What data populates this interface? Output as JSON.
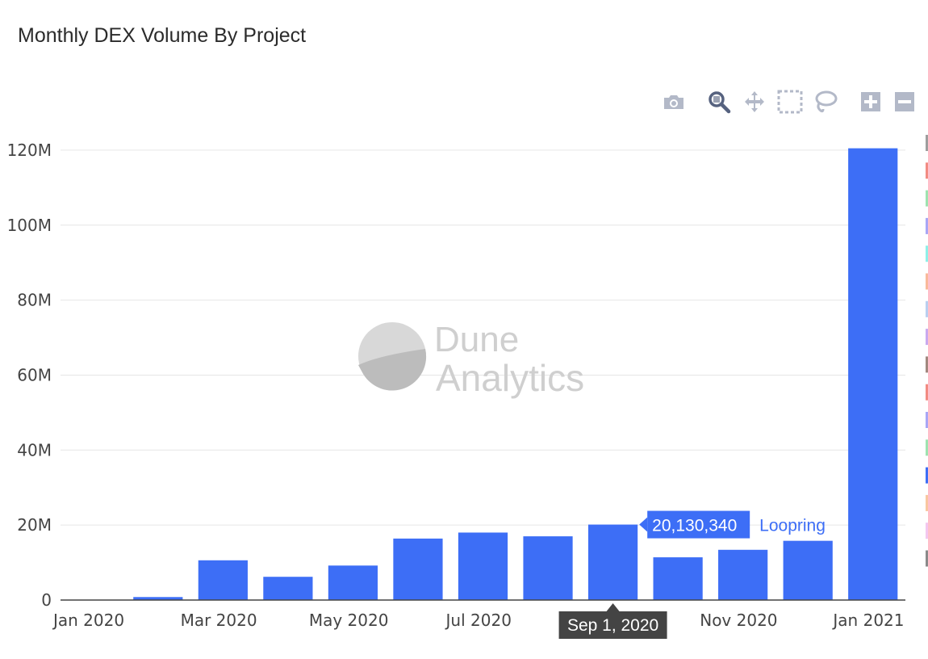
{
  "title": "Monthly DEX Volume By Project",
  "toolbar": {
    "buttons": [
      {
        "name": "camera-icon",
        "label": "Download plot as a png"
      },
      {
        "name": "zoom-icon",
        "label": "Zoom"
      },
      {
        "name": "pan-icon",
        "label": "Pan"
      },
      {
        "name": "box-select-icon",
        "label": "Box Select"
      },
      {
        "name": "lasso-icon",
        "label": "Lasso Select"
      },
      {
        "name": "zoom-in-icon",
        "label": "Zoom in"
      },
      {
        "name": "zoom-out-icon",
        "label": "Zoom out"
      }
    ],
    "icon_color": "#a9b1c6",
    "active_icon_color": "#506080"
  },
  "watermark": {
    "line1": "Dune",
    "line2": "Analytics"
  },
  "chart_data": {
    "type": "bar",
    "categories": [
      "2020-01",
      "2020-02",
      "2020-03",
      "2020-04",
      "2020-05",
      "2020-06",
      "2020-07",
      "2020-08",
      "2020-09",
      "2020-10",
      "2020-11",
      "2020-12",
      "2021-01"
    ],
    "series": [
      {
        "name": "Loopring",
        "color": "#3d6ef6",
        "values": [
          0,
          800000,
          10600000,
          6200000,
          9200000,
          16400000,
          18000000,
          17000000,
          20130340,
          11400000,
          13400000,
          15800000,
          120500000
        ]
      }
    ],
    "x_tick_labels": [
      "Jan 2020",
      "Mar 2020",
      "May 2020",
      "Jul 2020",
      "Sep 1, 2020",
      "Nov 2020",
      "Jan 2021"
    ],
    "x_tick_months": [
      0,
      2,
      4,
      6,
      8,
      10,
      12
    ],
    "y_ticks": [
      0,
      20000000,
      40000000,
      60000000,
      80000000,
      100000000,
      120000000
    ],
    "y_tick_labels": [
      "0",
      "20M",
      "40M",
      "60M",
      "80M",
      "100M",
      "120M"
    ],
    "ylim": [
      0,
      123000000
    ],
    "grid": true,
    "legend_placement": "right (clipped)",
    "legend_swatch_colors": [
      "#9e9e9e",
      "#f28b82",
      "#9ee3b0",
      "#a8a6f6",
      "#8ff0e8",
      "#f9b99a",
      "#b9cff0",
      "#c9a9ef",
      "#a1887f",
      "#f28b82",
      "#a8a6f6",
      "#9ee3b0",
      "#3d6ef6",
      "#f9c6a0",
      "#f3c6ef",
      "#8a8a8a"
    ],
    "hover": {
      "category_index": 8,
      "x_label": "Sep 1, 2020",
      "value_label": "20,130,340",
      "series_label": "Loopring"
    }
  }
}
